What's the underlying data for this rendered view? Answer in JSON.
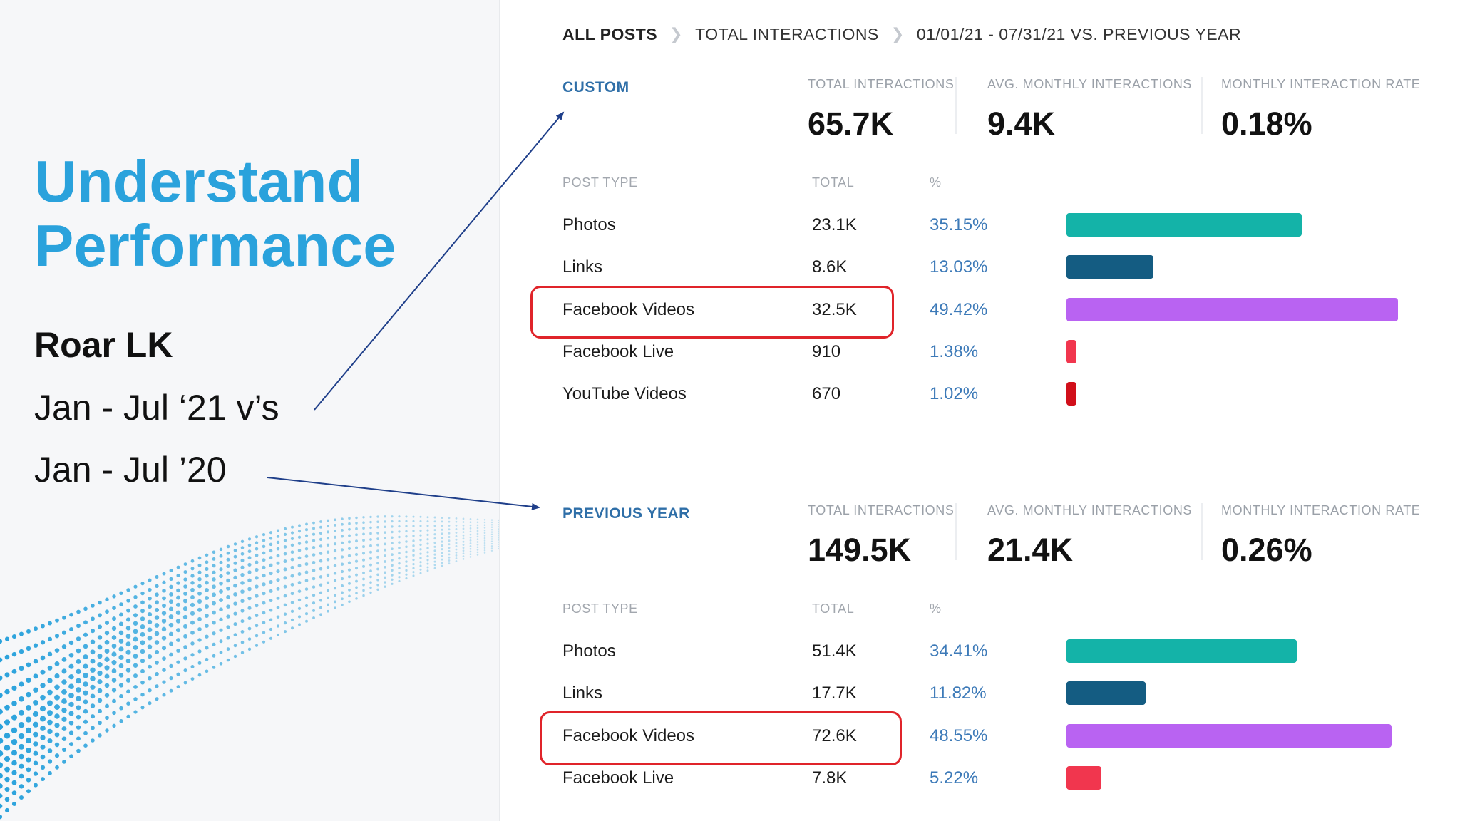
{
  "slide": {
    "title_line1": "Understand",
    "title_line2": "Performance",
    "brand": "Roar LK",
    "period_1": "Jan - Jul ‘21 v’s",
    "period_2": "Jan - Jul ’20"
  },
  "breadcrumb": {
    "item1": "ALL POSTS",
    "item2": "TOTAL INTERACTIONS",
    "item3": "01/01/21 - 07/31/21 VS. PREVIOUS YEAR"
  },
  "custom": {
    "label": "CUSTOM",
    "metrics": {
      "total_label": "TOTAL INTERACTIONS",
      "total_value": "65.7K",
      "avg_label": "AVG. MONTHLY INTERACTIONS",
      "avg_value": "9.4K",
      "rate_label": "MONTHLY INTERACTION RATE",
      "rate_value": "0.18%"
    },
    "headers": {
      "type": "POST TYPE",
      "total": "TOTAL",
      "pct": "%"
    },
    "rows": [
      {
        "type": "Photos",
        "total": "23.1K",
        "pct": "35.15%",
        "share": 35.15,
        "color": "#14b3a8"
      },
      {
        "type": "Links",
        "total": "8.6K",
        "pct": "13.03%",
        "share": 13.03,
        "color": "#145c82"
      },
      {
        "type": "Facebook Videos",
        "total": "32.5K",
        "pct": "49.42%",
        "share": 49.42,
        "color": "#b963f2"
      },
      {
        "type": "Facebook Live",
        "total": "910",
        "pct": "1.38%",
        "share": 1.38,
        "color": "#f1364e"
      },
      {
        "type": "YouTube Videos",
        "total": "670",
        "pct": "1.02%",
        "share": 1.02,
        "color": "#d10f1a"
      }
    ]
  },
  "previous": {
    "label": "PREVIOUS YEAR",
    "metrics": {
      "total_label": "TOTAL INTERACTIONS",
      "total_value": "149.5K",
      "avg_label": "AVG. MONTHLY INTERACTIONS",
      "avg_value": "21.4K",
      "rate_label": "MONTHLY INTERACTION RATE",
      "rate_value": "0.26%"
    },
    "headers": {
      "type": "POST TYPE",
      "total": "TOTAL",
      "pct": "%"
    },
    "rows": [
      {
        "type": "Photos",
        "total": "51.4K",
        "pct": "34.41%",
        "share": 34.41,
        "color": "#14b3a8"
      },
      {
        "type": "Links",
        "total": "17.7K",
        "pct": "11.82%",
        "share": 11.82,
        "color": "#145c82"
      },
      {
        "type": "Facebook Videos",
        "total": "72.6K",
        "pct": "48.55%",
        "share": 48.55,
        "color": "#b963f2"
      },
      {
        "type": "Facebook Live",
        "total": "7.8K",
        "pct": "5.22%",
        "share": 5.22,
        "color": "#f1364e"
      }
    ]
  },
  "colors": {
    "accent": "#2aa2dc",
    "highlight": "#e0242a",
    "section_label": "#2f6fa8",
    "arrow": "#1f3f8a"
  }
}
